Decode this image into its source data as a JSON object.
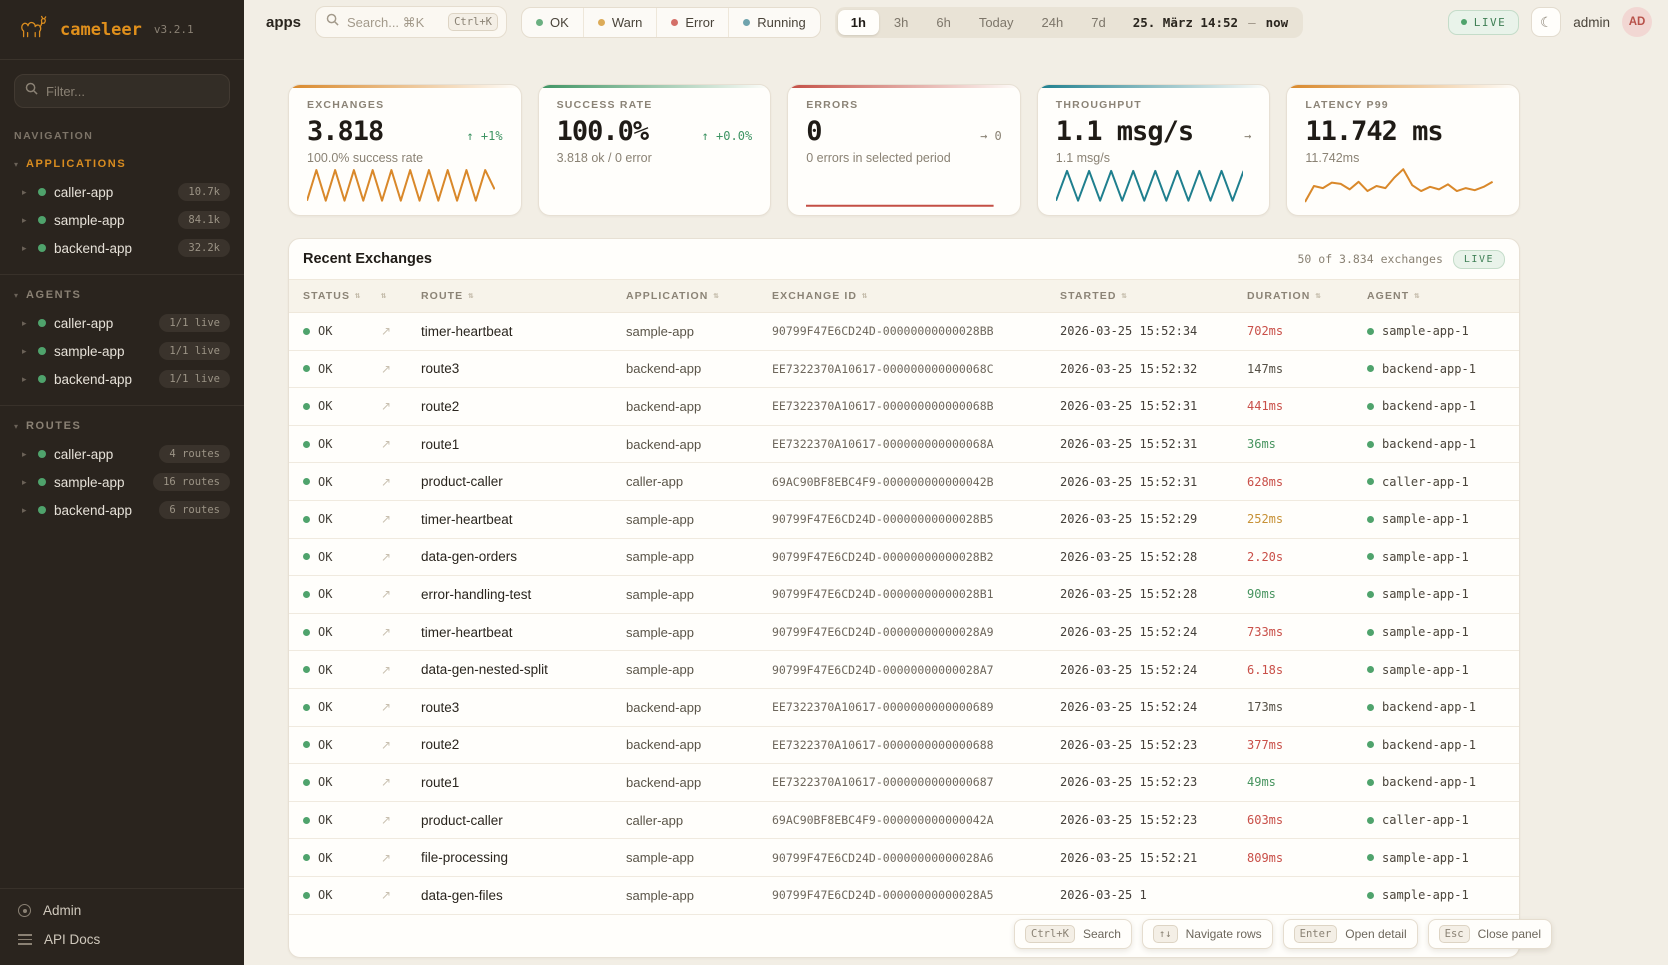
{
  "sidebar": {
    "logo": {
      "name": "cameleer",
      "version": "v3.2.1"
    },
    "filter_placeholder": "Filter...",
    "nav_label": "NAVIGATION",
    "section_caret": "▾",
    "item_caret": "▸",
    "sections": [
      {
        "label": "APPLICATIONS",
        "items": [
          {
            "name": "caller-app",
            "badge": "10.7k"
          },
          {
            "name": "sample-app",
            "badge": "84.1k"
          },
          {
            "name": "backend-app",
            "badge": "32.2k"
          }
        ]
      },
      {
        "label": "AGENTS",
        "items": [
          {
            "name": "caller-app",
            "badge": "1/1 live"
          },
          {
            "name": "sample-app",
            "badge": "1/1 live"
          },
          {
            "name": "backend-app",
            "badge": "1/1 live"
          }
        ]
      },
      {
        "label": "ROUTES",
        "items": [
          {
            "name": "caller-app",
            "badge": "4 routes"
          },
          {
            "name": "sample-app",
            "badge": "16 routes"
          },
          {
            "name": "backend-app",
            "badge": "6 routes"
          }
        ]
      }
    ],
    "footer": [
      {
        "label": "Admin"
      },
      {
        "label": "API Docs"
      }
    ]
  },
  "header": {
    "page_label": "apps",
    "search_placeholder": "Search... ⌘K",
    "search_kbd": "Ctrl+K",
    "status_filters": [
      {
        "label": "OK",
        "color": "#6aaf80"
      },
      {
        "label": "Warn",
        "color": "#dcab58"
      },
      {
        "label": "Error",
        "color": "#d46f68"
      },
      {
        "label": "Running",
        "color": "#6fa3ad"
      }
    ],
    "time_ranges": [
      {
        "label": "1h",
        "active": "active"
      },
      {
        "label": "3h",
        "active": ""
      },
      {
        "label": "6h",
        "active": ""
      },
      {
        "label": "Today",
        "active": ""
      },
      {
        "label": "24h",
        "active": ""
      },
      {
        "label": "7d",
        "active": ""
      }
    ],
    "date_from": "25. März 14:52",
    "date_sep": "—",
    "date_to": "now",
    "live_label": "LIVE",
    "moon_icon": "☾",
    "user": "admin",
    "avatar": "AD"
  },
  "stats": [
    {
      "title": "EXCHANGES",
      "value": "3.818",
      "trend": "↑ +1%",
      "trend_color": "#3e9463",
      "subtitle": "100.0% success rate",
      "accent": "#d9882a",
      "spark": {
        "color": "#d9882a",
        "points": [
          85,
          12,
          85,
          12,
          85,
          12,
          85,
          12,
          85,
          12,
          85,
          12,
          85,
          12,
          85,
          12,
          85,
          12,
          85,
          12,
          58
        ]
      }
    },
    {
      "title": "SUCCESS RATE",
      "value": "100.0%",
      "trend": "↑ +0.0%",
      "trend_color": "#3e9463",
      "subtitle": "3.818 ok / 0 error",
      "accent": "#3e9463",
      "spark": null
    },
    {
      "title": "ERRORS",
      "value": "0",
      "trend": "→ 0",
      "trend_color": "#8a8274",
      "subtitle": "0 errors in selected period",
      "accent": "#c44f45",
      "spark": {
        "color": "#c44f45",
        "points": [
          97,
          97
        ]
      }
    },
    {
      "title": "THROUGHPUT",
      "value": "1.1 msg/s",
      "trend": "→",
      "trend_color": "#8a8274",
      "subtitle": "1.1 msg/s",
      "accent": "#1f7f8e",
      "spark": {
        "color": "#1f7f8e",
        "points": [
          85,
          14,
          85,
          14,
          85,
          14,
          85,
          14,
          85,
          14,
          85,
          14,
          85,
          14,
          85,
          14,
          85,
          14
        ]
      }
    },
    {
      "title": "LATENCY P99",
      "value": "11.742 ms",
      "trend": "",
      "trend_color": "#8a8274",
      "subtitle": "11.742ms",
      "accent": "#d9882a",
      "spark": {
        "color": "#d9882a",
        "points": [
          88,
          50,
          55,
          42,
          45,
          58,
          40,
          62,
          50,
          55,
          30,
          10,
          48,
          62,
          52,
          58,
          46,
          62,
          55,
          60,
          52,
          40
        ]
      }
    }
  ],
  "table": {
    "title": "Recent Exchanges",
    "summary": "50 of 3.834 exchanges",
    "live_label": "LIVE",
    "sort_icon": "⇅",
    "link_icon": "↗",
    "columns": {
      "status": "STATUS",
      "route": "ROUTE",
      "application": "APPLICATION",
      "exchange_id": "EXCHANGE ID",
      "started": "STARTED",
      "duration": "DURATION",
      "agent": "AGENT"
    },
    "rows": [
      {
        "status": "OK",
        "route": "timer-heartbeat",
        "app": "sample-app",
        "exchange_id": "90799F47E6CD24D-00000000000028BB",
        "started": "2026-03-25 15:52:34",
        "duration": "702ms",
        "duration_color": "red",
        "agent": "sample-app-1"
      },
      {
        "status": "OK",
        "route": "route3",
        "app": "backend-app",
        "exchange_id": "EE7322370A10617-000000000000068C",
        "started": "2026-03-25 15:52:32",
        "duration": "147ms",
        "duration_color": "neutral",
        "agent": "backend-app-1"
      },
      {
        "status": "OK",
        "route": "route2",
        "app": "backend-app",
        "exchange_id": "EE7322370A10617-000000000000068B",
        "started": "2026-03-25 15:52:31",
        "duration": "441ms",
        "duration_color": "red",
        "agent": "backend-app-1"
      },
      {
        "status": "OK",
        "route": "route1",
        "app": "backend-app",
        "exchange_id": "EE7322370A10617-000000000000068A",
        "started": "2026-03-25 15:52:31",
        "duration": "36ms",
        "duration_color": "green",
        "agent": "backend-app-1"
      },
      {
        "status": "OK",
        "route": "product-caller",
        "app": "caller-app",
        "exchange_id": "69AC90BF8EBC4F9-000000000000042B",
        "started": "2026-03-25 15:52:31",
        "duration": "628ms",
        "duration_color": "red",
        "agent": "caller-app-1"
      },
      {
        "status": "OK",
        "route": "timer-heartbeat",
        "app": "sample-app",
        "exchange_id": "90799F47E6CD24D-00000000000028B5",
        "started": "2026-03-25 15:52:29",
        "duration": "252ms",
        "duration_color": "amber",
        "agent": "sample-app-1"
      },
      {
        "status": "OK",
        "route": "data-gen-orders",
        "app": "sample-app",
        "exchange_id": "90799F47E6CD24D-00000000000028B2",
        "started": "2026-03-25 15:52:28",
        "duration": "2.20s",
        "duration_color": "red",
        "agent": "sample-app-1"
      },
      {
        "status": "OK",
        "route": "error-handling-test",
        "app": "sample-app",
        "exchange_id": "90799F47E6CD24D-00000000000028B1",
        "started": "2026-03-25 15:52:28",
        "duration": "90ms",
        "duration_color": "green",
        "agent": "sample-app-1"
      },
      {
        "status": "OK",
        "route": "timer-heartbeat",
        "app": "sample-app",
        "exchange_id": "90799F47E6CD24D-00000000000028A9",
        "started": "2026-03-25 15:52:24",
        "duration": "733ms",
        "duration_color": "red",
        "agent": "sample-app-1"
      },
      {
        "status": "OK",
        "route": "data-gen-nested-split",
        "app": "sample-app",
        "exchange_id": "90799F47E6CD24D-00000000000028A7",
        "started": "2026-03-25 15:52:24",
        "duration": "6.18s",
        "duration_color": "red",
        "agent": "sample-app-1"
      },
      {
        "status": "OK",
        "route": "route3",
        "app": "backend-app",
        "exchange_id": "EE7322370A10617-0000000000000689",
        "started": "2026-03-25 15:52:24",
        "duration": "173ms",
        "duration_color": "neutral",
        "agent": "backend-app-1"
      },
      {
        "status": "OK",
        "route": "route2",
        "app": "backend-app",
        "exchange_id": "EE7322370A10617-0000000000000688",
        "started": "2026-03-25 15:52:23",
        "duration": "377ms",
        "duration_color": "red",
        "agent": "backend-app-1"
      },
      {
        "status": "OK",
        "route": "route1",
        "app": "backend-app",
        "exchange_id": "EE7322370A10617-0000000000000687",
        "started": "2026-03-25 15:52:23",
        "duration": "49ms",
        "duration_color": "green",
        "agent": "backend-app-1"
      },
      {
        "status": "OK",
        "route": "product-caller",
        "app": "caller-app",
        "exchange_id": "69AC90BF8EBC4F9-000000000000042A",
        "started": "2026-03-25 15:52:23",
        "duration": "603ms",
        "duration_color": "red",
        "agent": "caller-app-1"
      },
      {
        "status": "OK",
        "route": "file-processing",
        "app": "sample-app",
        "exchange_id": "90799F47E6CD24D-00000000000028A6",
        "started": "2026-03-25 15:52:21",
        "duration": "809ms",
        "duration_color": "red",
        "agent": "sample-app-1"
      },
      {
        "status": "OK",
        "route": "data-gen-files",
        "app": "sample-app",
        "exchange_id": "90799F47E6CD24D-00000000000028A5",
        "started": "2026-03-25 1",
        "duration": "",
        "duration_color": "neutral",
        "agent": "sample-app-1"
      }
    ]
  },
  "shortcuts": [
    {
      "keys": "Ctrl+K",
      "label": "Search"
    },
    {
      "keys": "↑↓",
      "label": "Navigate rows"
    },
    {
      "keys": "Enter",
      "label": "Open detail"
    },
    {
      "keys": "Esc",
      "label": "Close panel"
    }
  ]
}
